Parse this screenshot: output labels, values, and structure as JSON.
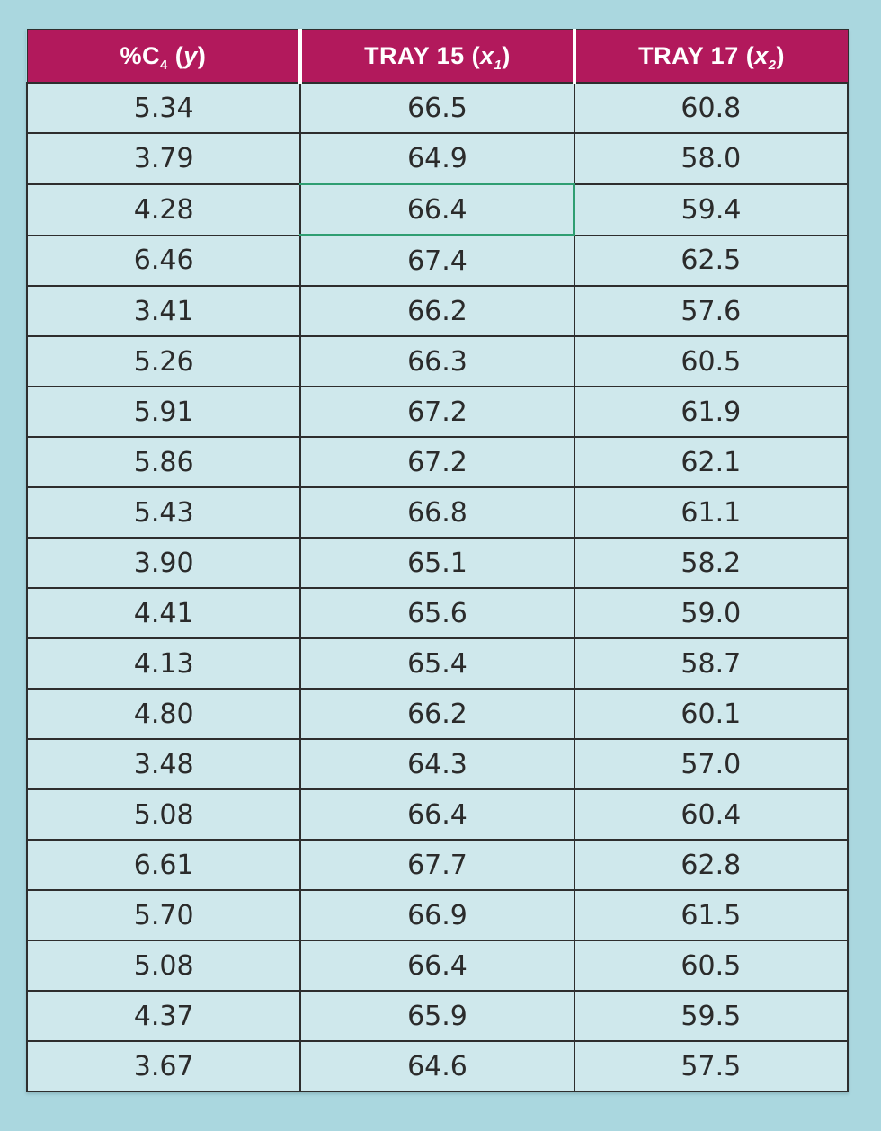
{
  "page": {
    "background": "#aad7df"
  },
  "table": {
    "colors": {
      "header_bg": "#b2195c",
      "cell_bg": "#cfe8ec",
      "border_color": "#2e2e2e",
      "highlight_color": "#2f9e72",
      "text_color": "#2b2b2b"
    },
    "columns": [
      {
        "label": "%C4 (y)",
        "parts": [
          {
            "t": "%C"
          },
          {
            "t": "4",
            "sub": true
          },
          {
            "t": " ("
          },
          {
            "t": "y",
            "i": true
          },
          {
            "t": ")"
          }
        ]
      },
      {
        "label": "TRAY 15 (x1)",
        "parts": [
          {
            "t": "TRAY 15 ("
          },
          {
            "t": "x",
            "i": true
          },
          {
            "t": "1",
            "sub": true,
            "i": true
          },
          {
            "t": ")"
          }
        ]
      },
      {
        "label": "TRAY 17 (x2)",
        "parts": [
          {
            "t": "TRAY 17 ("
          },
          {
            "t": "x",
            "i": true
          },
          {
            "t": "2",
            "sub": true,
            "i": true
          },
          {
            "t": ")"
          }
        ]
      }
    ],
    "rows": [
      [
        "5.34",
        "66.5",
        "60.8"
      ],
      [
        "3.79",
        "64.9",
        "58.0"
      ],
      [
        "4.28",
        "66.4",
        "59.4"
      ],
      [
        "6.46",
        "67.4",
        "62.5"
      ],
      [
        "3.41",
        "66.2",
        "57.6"
      ],
      [
        "5.26",
        "66.3",
        "60.5"
      ],
      [
        "5.91",
        "67.2",
        "61.9"
      ],
      [
        "5.86",
        "67.2",
        "62.1"
      ],
      [
        "5.43",
        "66.8",
        "61.1"
      ],
      [
        "3.90",
        "65.1",
        "58.2"
      ],
      [
        "4.41",
        "65.6",
        "59.0"
      ],
      [
        "4.13",
        "65.4",
        "58.7"
      ],
      [
        "4.80",
        "66.2",
        "60.1"
      ],
      [
        "3.48",
        "64.3",
        "57.0"
      ],
      [
        "5.08",
        "66.4",
        "60.4"
      ],
      [
        "6.61",
        "67.7",
        "62.8"
      ],
      [
        "5.70",
        "66.9",
        "61.5"
      ],
      [
        "5.08",
        "66.4",
        "60.5"
      ],
      [
        "4.37",
        "65.9",
        "59.5"
      ],
      [
        "3.67",
        "64.6",
        "57.5"
      ]
    ],
    "highlight": {
      "row": 2,
      "col": 1
    }
  },
  "chart_data": {
    "type": "table",
    "title": "",
    "columns": [
      "%C4 (y)",
      "TRAY 15 (x1)",
      "TRAY 17 (x2)"
    ],
    "rows": [
      [
        5.34,
        66.5,
        60.8
      ],
      [
        3.79,
        64.9,
        58.0
      ],
      [
        4.28,
        66.4,
        59.4
      ],
      [
        6.46,
        67.4,
        62.5
      ],
      [
        3.41,
        66.2,
        57.6
      ],
      [
        5.26,
        66.3,
        60.5
      ],
      [
        5.91,
        67.2,
        61.9
      ],
      [
        5.86,
        67.2,
        62.1
      ],
      [
        5.43,
        66.8,
        61.1
      ],
      [
        3.9,
        65.1,
        58.2
      ],
      [
        4.41,
        65.6,
        59.0
      ],
      [
        4.13,
        65.4,
        58.7
      ],
      [
        4.8,
        66.2,
        60.1
      ],
      [
        3.48,
        64.3,
        57.0
      ],
      [
        5.08,
        66.4,
        60.4
      ],
      [
        6.61,
        67.7,
        62.8
      ],
      [
        5.7,
        66.9,
        61.5
      ],
      [
        5.08,
        66.4,
        60.5
      ],
      [
        4.37,
        65.9,
        59.5
      ],
      [
        3.67,
        64.6,
        57.5
      ]
    ],
    "highlighted_cell": {
      "row": 2,
      "col": 1,
      "value": 66.4
    }
  }
}
